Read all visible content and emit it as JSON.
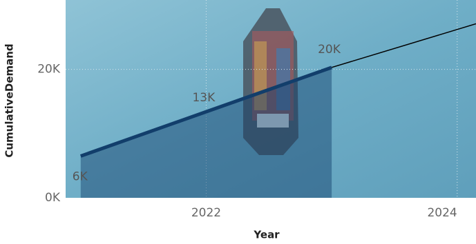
{
  "chart_data": {
    "type": "line",
    "x_label": "Year",
    "y_label": "CumulativeDemand",
    "x": [
      2021,
      2022,
      2023
    ],
    "values": [
      6500,
      13400,
      20300
    ],
    "value_labels": [
      "6K",
      "13K",
      "20K"
    ],
    "color": "#123e6b",
    "trend": {
      "x": [
        2023,
        2024.15
      ],
      "values": [
        20300,
        27100
      ],
      "color": "#000000"
    },
    "xlim": [
      2020.88,
      2024.15
    ],
    "ylim": [
      0,
      30800
    ],
    "xticks": [
      2022,
      2024
    ],
    "yticks": [
      {
        "value": 0,
        "label": "0K"
      },
      {
        "value": 20000,
        "label": "20K"
      }
    ],
    "grid": true
  }
}
